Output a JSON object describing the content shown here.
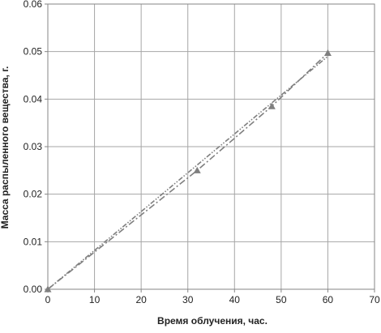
{
  "chart_data": {
    "type": "line",
    "title": "",
    "xlabel": "Время облучения, час.",
    "ylabel": "Масса распыленного вещества, г.",
    "xlim": [
      0,
      70
    ],
    "ylim": [
      0,
      0.06
    ],
    "x_ticks": [
      "0",
      "10",
      "20",
      "30",
      "40",
      "50",
      "60",
      "70"
    ],
    "y_ticks": [
      "0.00",
      "0.01",
      "0.02",
      "0.03",
      "0.04",
      "0.05",
      "0.06"
    ],
    "grid": true,
    "legend": "none",
    "series": [
      {
        "style": "markers-dash-dot",
        "marker": "triangle",
        "color": "#7f7f7f",
        "x": [
          0,
          32,
          48,
          60
        ],
        "y": [
          0,
          0.025,
          0.0385,
          0.0497
        ]
      },
      {
        "style": "dash-dot-dot",
        "color": "#7f7f7f",
        "x": [
          0,
          60
        ],
        "y": [
          0,
          0.049
        ]
      }
    ]
  }
}
